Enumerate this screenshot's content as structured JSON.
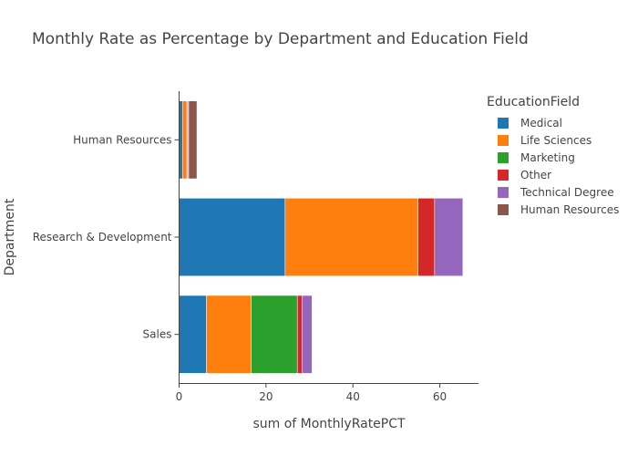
{
  "chart_data": {
    "type": "bar",
    "orientation": "horizontal",
    "barmode": "stack",
    "title": "Monthly Rate as Percentage by Department and Education Field",
    "xlabel": "sum of MonthlyRatePCT",
    "ylabel": "Department",
    "xlim": [
      0,
      68.9
    ],
    "xticks": [
      "0",
      "20",
      "40",
      "60"
    ],
    "grid": false,
    "legend_title": "EducationField",
    "legend_position": "top-right",
    "categories": [
      "Human Resources",
      "Research & Development",
      "Sales"
    ],
    "series": [
      {
        "name": "Medical",
        "color": "#1f77b4",
        "values": [
          0.8,
          24.4,
          6.3
        ]
      },
      {
        "name": "Life Sciences",
        "color": "#ff7f0e",
        "values": [
          1.0,
          30.6,
          10.3
        ]
      },
      {
        "name": "Marketing",
        "color": "#2ca02c",
        "values": [
          0,
          0,
          10.6
        ]
      },
      {
        "name": "Other",
        "color": "#d62728",
        "values": [
          0.2,
          3.8,
          1.1
        ]
      },
      {
        "name": "Technical Degree",
        "color": "#9467bd",
        "values": [
          0.2,
          6.5,
          2.3
        ]
      },
      {
        "name": "Human Resources",
        "color": "#8c564b",
        "values": [
          1.9,
          0,
          0
        ]
      }
    ]
  }
}
